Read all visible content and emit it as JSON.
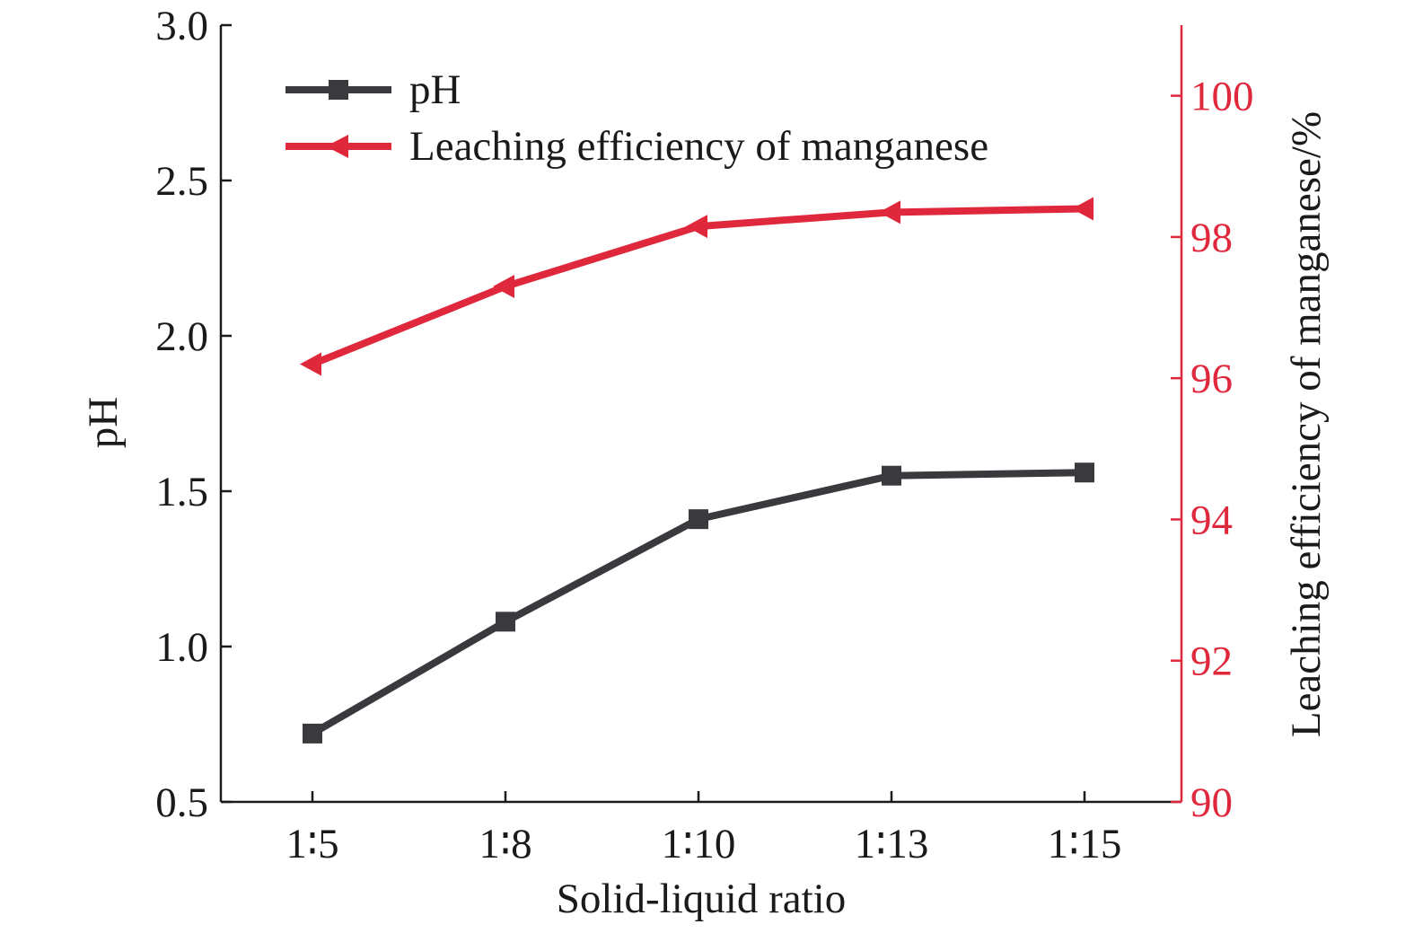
{
  "chart_data": {
    "type": "line",
    "categories": [
      "1∶5",
      "1∶8",
      "1∶10",
      "1∶13",
      "1∶15"
    ],
    "xlabel": "Solid-liquid ratio",
    "ylabel": "pH",
    "ylabel_right": "Leaching efficiency of manganese/%",
    "ylim": [
      0.5,
      3.0
    ],
    "yticks": [
      "0.5",
      "1.0",
      "1.5",
      "2.0",
      "2.5",
      "3.0"
    ],
    "ylim_right": [
      90,
      101
    ],
    "yticks_right": [
      "90",
      "92",
      "94",
      "96",
      "98",
      "100"
    ],
    "grid": false,
    "legend_position": "top-left",
    "series": [
      {
        "name": "pH",
        "axis": "left",
        "marker": "square",
        "color": "#3a3a3e",
        "values": [
          0.72,
          1.08,
          1.41,
          1.55,
          1.56
        ]
      },
      {
        "name": "Leaching efficiency of manganese",
        "axis": "right",
        "marker": "triangle-left",
        "color": "#e0283c",
        "values": [
          96.2,
          97.3,
          98.15,
          98.35,
          98.4
        ]
      }
    ]
  }
}
